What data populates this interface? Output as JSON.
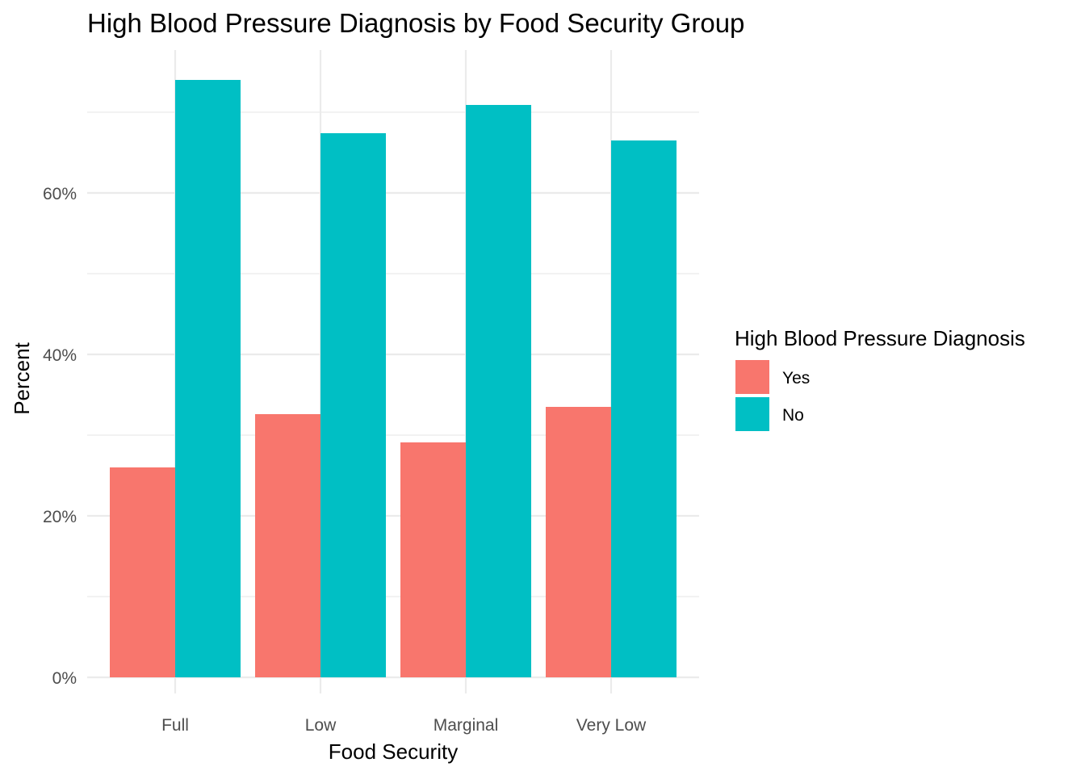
{
  "chart_data": {
    "type": "bar",
    "title": "High Blood Pressure Diagnosis by Food Security Group",
    "xlabel": "Food Security",
    "ylabel": "Percent",
    "categories": [
      "Full",
      "Low",
      "Marginal",
      "Very Low"
    ],
    "series": [
      {
        "name": "Yes",
        "color": "#F8766D",
        "values": [
          26.0,
          32.6,
          29.1,
          33.5
        ]
      },
      {
        "name": "No",
        "color": "#00BFC4",
        "values": [
          74.0,
          67.4,
          70.9,
          66.5
        ]
      }
    ],
    "ylim": [
      0,
      77
    ],
    "y_ticks": [
      0,
      20,
      40,
      60
    ],
    "y_tick_labels": [
      "0%",
      "20%",
      "40%",
      "60%"
    ],
    "grid": true,
    "legend": {
      "title": "High Blood Pressure Diagnosis",
      "placement": "right"
    }
  }
}
